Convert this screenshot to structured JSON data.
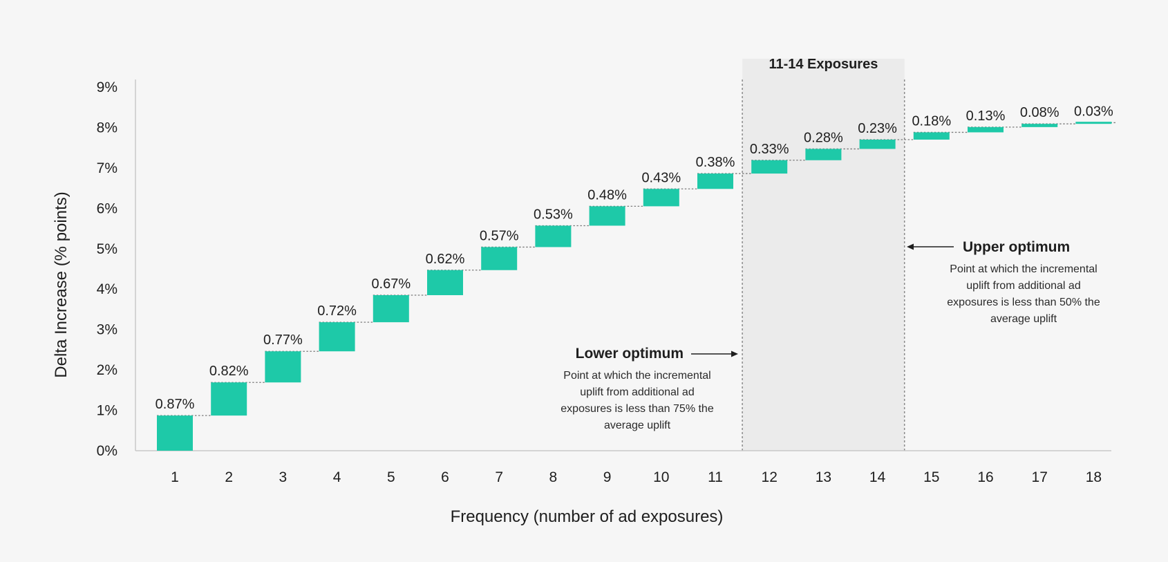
{
  "chart_data": {
    "type": "bar",
    "subtype": "waterfall",
    "xlabel": "Frequency (number of ad exposures)",
    "ylabel": "Delta Increase (% points)",
    "ylim": [
      0,
      9
    ],
    "y_ticks": [
      "0%",
      "1%",
      "2%",
      "3%",
      "4%",
      "5%",
      "6%",
      "7%",
      "8%",
      "9%"
    ],
    "categories": [
      "1",
      "2",
      "3",
      "4",
      "5",
      "6",
      "7",
      "8",
      "9",
      "10",
      "11",
      "12",
      "13",
      "14",
      "15",
      "16",
      "17",
      "18"
    ],
    "values": [
      0.87,
      0.82,
      0.77,
      0.72,
      0.67,
      0.62,
      0.57,
      0.53,
      0.48,
      0.43,
      0.38,
      0.33,
      0.28,
      0.23,
      0.18,
      0.13,
      0.08,
      0.03
    ],
    "value_labels": [
      "0.87%",
      "0.82%",
      "0.77%",
      "0.72%",
      "0.67%",
      "0.62%",
      "0.57%",
      "0.53%",
      "0.48%",
      "0.43%",
      "0.38%",
      "0.33%",
      "0.28%",
      "0.23%",
      "0.18%",
      "0.13%",
      "0.08%",
      "0.03%"
    ],
    "bar_color": "#1ec9a8",
    "grid": false,
    "highlight_band": {
      "from": 11.5,
      "to": 14.5,
      "label": "11-14 Exposures",
      "color": "#ebebeb"
    },
    "annotations": {
      "lower": {
        "title": "Lower optimum",
        "text": [
          "Point at which the incremental",
          "uplift from additional ad",
          "exposures is less than 75% the",
          "average uplift"
        ]
      },
      "upper": {
        "title": "Upper optimum",
        "text": [
          "Point at which the incremental",
          "uplift from additional ad",
          "exposures is less than 50% the",
          "average uplift"
        ]
      }
    }
  }
}
